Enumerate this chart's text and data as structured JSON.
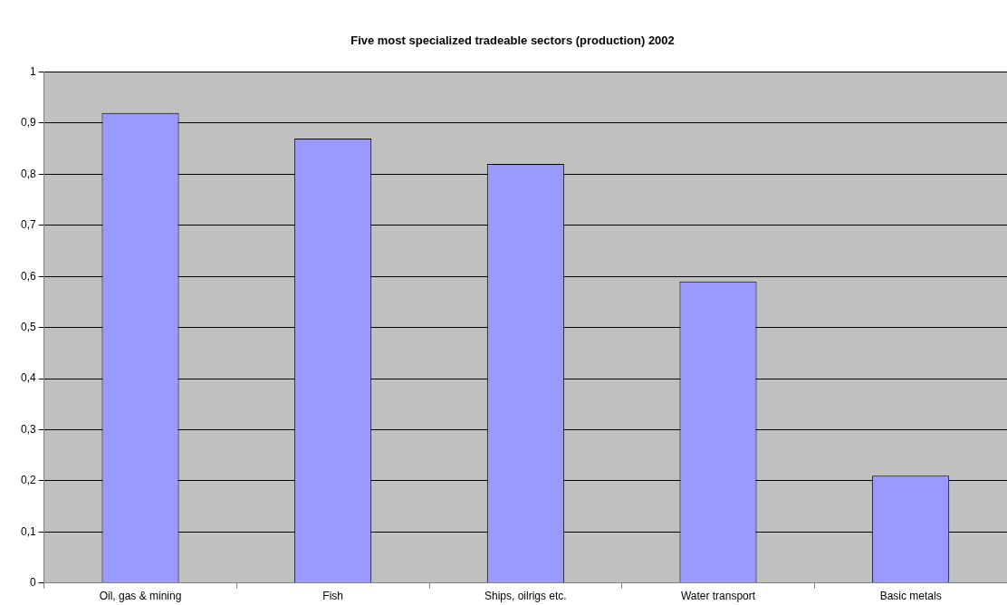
{
  "chart_data": {
    "type": "bar",
    "title": "Five most specialized tradeable sectors (production) 2002",
    "categories": [
      "Oil, gas & mining",
      "Fish",
      "Ships, oilrigs etc.",
      "Water transport",
      "Basic metals"
    ],
    "values": [
      0.92,
      0.87,
      0.82,
      0.59,
      0.21
    ],
    "color": "#9999ff",
    "ylim": [
      0,
      1
    ],
    "yticks": [
      0,
      {
        "value": 0.1,
        "label": "0,1"
      },
      {
        "value": 0.2,
        "label": "0,2"
      },
      {
        "value": 0.3,
        "label": "0,3"
      },
      {
        "value": 0.4,
        "label": "0,4"
      },
      {
        "value": 0.5,
        "label": "0,5"
      },
      {
        "value": 0.6,
        "label": "0,6"
      },
      {
        "value": 0.7,
        "label": "0,7"
      },
      {
        "value": 0.8,
        "label": "0,8"
      },
      {
        "value": 0.9,
        "label": "0,9"
      },
      1
    ],
    "grid": "y",
    "legend": false
  }
}
